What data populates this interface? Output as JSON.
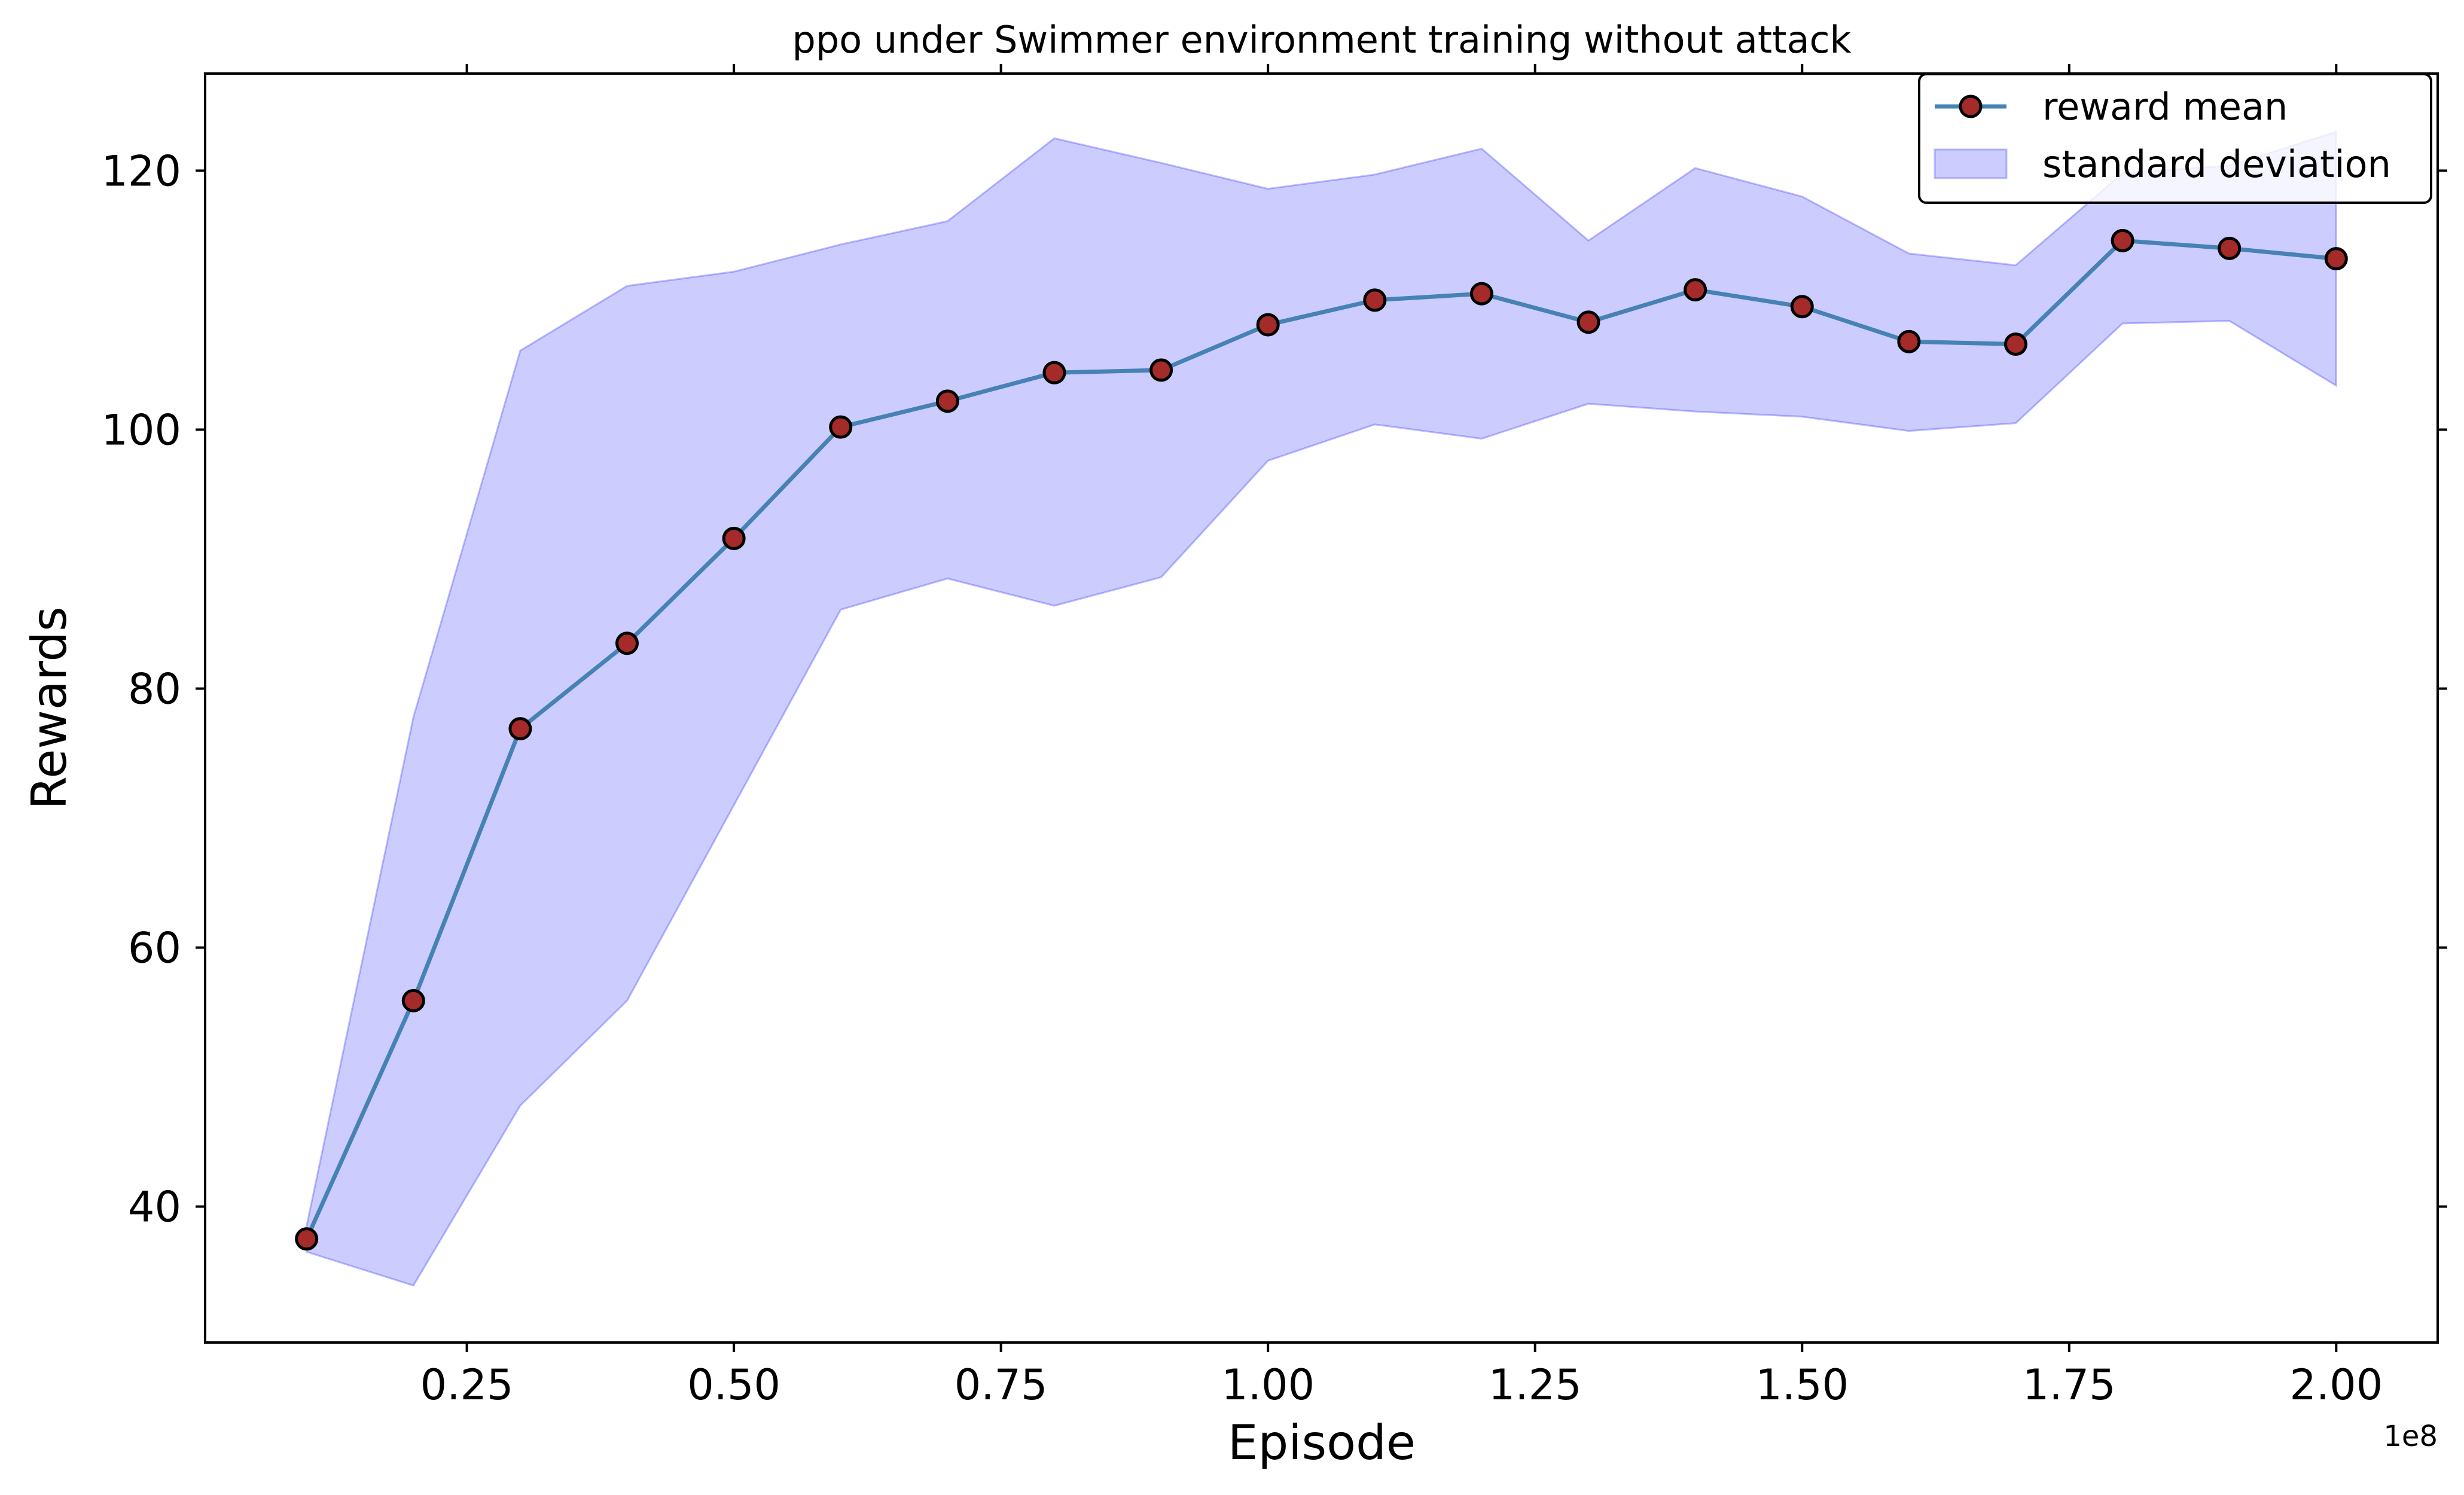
{
  "chart_data": {
    "type": "line",
    "title": "ppo under Swimmer environment training without attack",
    "xlabel": "Episode",
    "ylabel": "Rewards",
    "x_offset_label": "1e8",
    "x_scale": 100000000,
    "x": [
      10000000,
      20000000,
      30000000,
      40000000,
      50000000,
      60000000,
      70000000,
      80000000,
      90000000,
      100000000,
      110000000,
      120000000,
      130000000,
      140000000,
      150000000,
      160000000,
      170000000,
      180000000,
      190000000,
      200000000
    ],
    "xlim": [
      500000,
      209500000
    ],
    "ylim": [
      29.5,
      127.5
    ],
    "xticks": [
      25000000,
      50000000,
      75000000,
      100000000,
      125000000,
      150000000,
      175000000,
      200000000
    ],
    "xtick_labels": [
      "0.25",
      "0.50",
      "0.75",
      "1.00",
      "1.25",
      "1.50",
      "1.75",
      "2.00"
    ],
    "yticks": [
      40,
      60,
      80,
      100,
      120
    ],
    "ytick_labels": [
      "40",
      "60",
      "80",
      "100",
      "120"
    ],
    "grid": false,
    "legend_position": "top-right",
    "series": [
      {
        "name": "reward mean",
        "kind": "line-markers",
        "line_color": "#4682b4",
        "marker_color": "#a52a2a",
        "values": [
          37.5,
          55.9,
          76.9,
          83.5,
          91.6,
          100.2,
          102.2,
          104.4,
          104.6,
          108.1,
          110.0,
          110.5,
          108.3,
          110.8,
          109.5,
          106.8,
          106.6,
          114.6,
          114.0,
          113.2
        ]
      },
      {
        "name": "standard deviation",
        "kind": "band",
        "fill_color": "#0000ff",
        "fill_opacity": 0.2,
        "upper": [
          38.5,
          77.8,
          106.1,
          111.1,
          112.2,
          114.3,
          116.1,
          122.5,
          120.6,
          118.6,
          119.7,
          121.7,
          114.6,
          120.2,
          118.0,
          113.6,
          112.7,
          119.8,
          120.4,
          123.0
        ],
        "lower": [
          36.5,
          33.9,
          47.8,
          55.9,
          71.0,
          86.1,
          88.5,
          86.4,
          88.6,
          97.6,
          100.4,
          99.3,
          102.0,
          101.4,
          101.0,
          99.9,
          100.5,
          108.2,
          108.4,
          103.4
        ]
      }
    ]
  }
}
